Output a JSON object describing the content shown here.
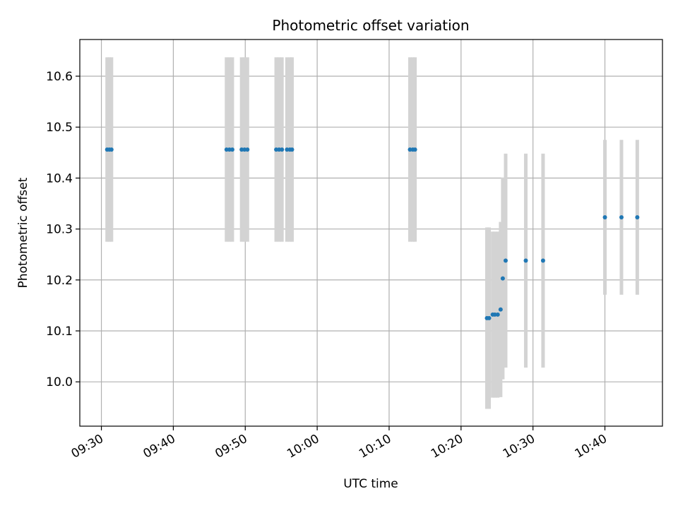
{
  "chart_data": {
    "type": "scatter",
    "title": "Photometric offset variation",
    "xlabel": "UTC time",
    "ylabel": "Photometric offset",
    "x_ticks": [
      "09:30",
      "09:40",
      "09:50",
      "10:00",
      "10:10",
      "10:20",
      "10:30",
      "10:40"
    ],
    "y_ticks": [
      "10.0",
      "10.1",
      "10.2",
      "10.3",
      "10.4",
      "10.5",
      "10.6"
    ],
    "xlim": [
      "09:27:00",
      "10:48:00"
    ],
    "ylim": [
      9.913,
      10.672
    ],
    "grid": true,
    "colors": {
      "point": "#1f77b4",
      "errorbar": "#d3d3d3",
      "grid": "#b0b0b0"
    },
    "points": [
      {
        "x": "09:30:48",
        "y": 10.456,
        "err": 0.181
      },
      {
        "x": "09:31:06",
        "y": 10.456,
        "err": 0.181
      },
      {
        "x": "09:31:24",
        "y": 10.456,
        "err": 0.181
      },
      {
        "x": "09:47:24",
        "y": 10.456,
        "err": 0.181
      },
      {
        "x": "09:47:48",
        "y": 10.456,
        "err": 0.181
      },
      {
        "x": "09:48:12",
        "y": 10.456,
        "err": 0.181
      },
      {
        "x": "09:49:30",
        "y": 10.456,
        "err": 0.181
      },
      {
        "x": "09:49:54",
        "y": 10.456,
        "err": 0.181
      },
      {
        "x": "09:50:18",
        "y": 10.456,
        "err": 0.181
      },
      {
        "x": "09:54:18",
        "y": 10.456,
        "err": 0.181
      },
      {
        "x": "09:54:42",
        "y": 10.456,
        "err": 0.181
      },
      {
        "x": "09:55:06",
        "y": 10.456,
        "err": 0.181
      },
      {
        "x": "09:55:48",
        "y": 10.456,
        "err": 0.181
      },
      {
        "x": "09:56:12",
        "y": 10.456,
        "err": 0.181
      },
      {
        "x": "09:56:30",
        "y": 10.456,
        "err": 0.181
      },
      {
        "x": "10:12:54",
        "y": 10.456,
        "err": 0.181
      },
      {
        "x": "10:13:18",
        "y": 10.456,
        "err": 0.181
      },
      {
        "x": "10:13:36",
        "y": 10.456,
        "err": 0.181
      },
      {
        "x": "10:23:36",
        "y": 10.125,
        "err": 0.178
      },
      {
        "x": "10:23:54",
        "y": 10.125,
        "err": 0.178
      },
      {
        "x": "10:24:24",
        "y": 10.132,
        "err": 0.163
      },
      {
        "x": "10:24:42",
        "y": 10.132,
        "err": 0.163
      },
      {
        "x": "10:25:06",
        "y": 10.132,
        "err": 0.163
      },
      {
        "x": "10:25:30",
        "y": 10.142,
        "err": 0.172
      },
      {
        "x": "10:25:48",
        "y": 10.203,
        "err": 0.198
      },
      {
        "x": "10:26:12",
        "y": 10.238,
        "err": 0.21
      },
      {
        "x": "10:29:00",
        "y": 10.238,
        "err": 0.21
      },
      {
        "x": "10:31:24",
        "y": 10.238,
        "err": 0.21
      },
      {
        "x": "10:40:00",
        "y": 10.323,
        "err": 0.152
      },
      {
        "x": "10:42:18",
        "y": 10.323,
        "err": 0.152
      },
      {
        "x": "10:44:30",
        "y": 10.323,
        "err": 0.152
      }
    ]
  }
}
